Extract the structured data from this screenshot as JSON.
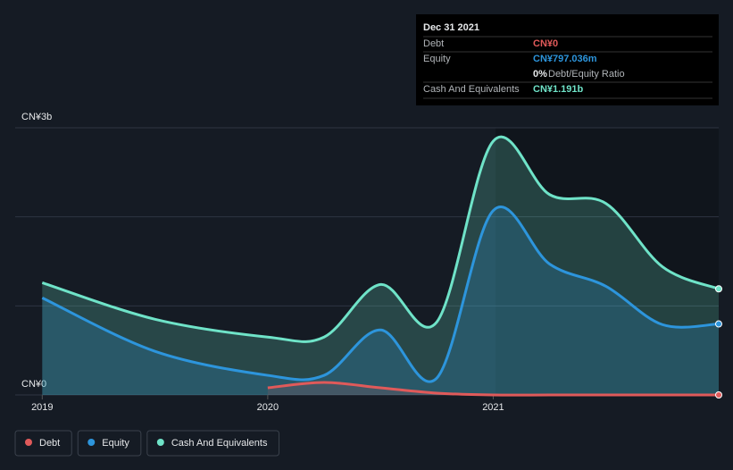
{
  "chart_data": {
    "type": "area-line",
    "x": [
      2019.0,
      2019.5,
      2020.0,
      2020.25,
      2020.5,
      2020.75,
      2021.0,
      2021.25,
      2021.5,
      2021.75,
      2022.0
    ],
    "xlim": [
      2018.88,
      2022.0
    ],
    "xticks": [
      2019,
      2020,
      2021
    ],
    "ylim": [
      0,
      3
    ],
    "yticks": [
      {
        "value": 0,
        "label": "CN¥0"
      },
      {
        "value": 1,
        "label": null
      },
      {
        "value": 2,
        "label": null
      },
      {
        "value": 3,
        "label": "CN¥3b"
      }
    ],
    "grid": true,
    "series": [
      {
        "name": "Debt",
        "color": "#e05a5a",
        "values": [
          null,
          null,
          0.08,
          0.14,
          0.08,
          0.02,
          0.0,
          0.0,
          0.0,
          0.0,
          0
        ]
      },
      {
        "name": "Equity",
        "color": "#2d95dc",
        "values": [
          1.09,
          0.49,
          0.22,
          0.22,
          0.73,
          0.19,
          2.07,
          1.47,
          1.22,
          0.79,
          0.797036
        ]
      },
      {
        "name": "Cash And Equivalents",
        "color": "#6fe3c8",
        "values": [
          1.26,
          0.85,
          0.65,
          0.65,
          1.24,
          0.82,
          2.85,
          2.25,
          2.15,
          1.44,
          1.191
        ]
      }
    ],
    "tooltip": {
      "date": "Dec 31 2021",
      "value_labels": [
        "CN¥0",
        "CN¥797.036m",
        "CN¥1.191b"
      ],
      "ratio": "0%",
      "ratio_label": "Debt/Equity Ratio"
    }
  }
}
